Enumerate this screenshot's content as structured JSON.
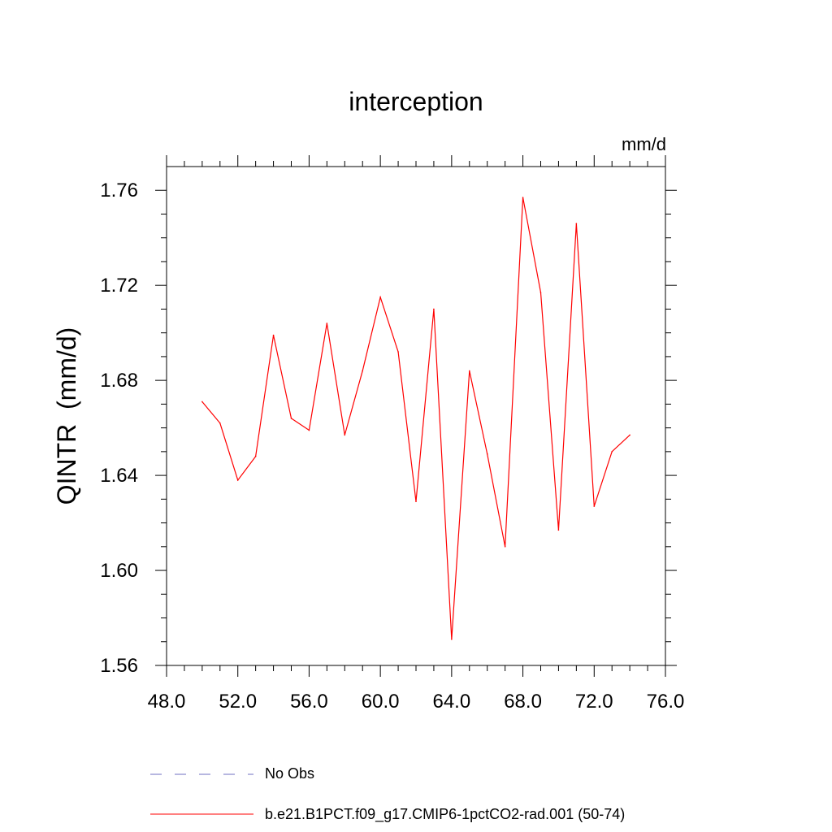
{
  "chart_data": {
    "type": "line",
    "title": "interception",
    "units": "mm/d",
    "ylabel": "QINTR  (mm/d)",
    "xlabel": "",
    "xlim": [
      48,
      76
    ],
    "ylim": [
      1.56,
      1.77
    ],
    "x_ticks": [
      48,
      52,
      56,
      60,
      64,
      68,
      72,
      76
    ],
    "x_tick_labels": [
      "48.0",
      "52.0",
      "56.0",
      "60.0",
      "64.0",
      "68.0",
      "72.0",
      "76.0"
    ],
    "y_ticks": [
      1.56,
      1.6,
      1.64,
      1.68,
      1.72,
      1.76
    ],
    "y_tick_labels": [
      "1.56",
      "1.60",
      "1.64",
      "1.68",
      "1.72",
      "1.76"
    ],
    "grid": false,
    "series": [
      {
        "name": "b.e21.B1PCT.f09_g17.CMIP6-1pctCO2-rad.001 (50-74)",
        "color": "#ff0000",
        "x": [
          50,
          51,
          52,
          53,
          54,
          55,
          56,
          57,
          58,
          59,
          60,
          61,
          62,
          63,
          64,
          65,
          66,
          67,
          68,
          69,
          70,
          71,
          72,
          73,
          74
        ],
        "y": [
          1.671,
          1.662,
          1.638,
          1.648,
          1.699,
          1.664,
          1.659,
          1.704,
          1.657,
          1.684,
          1.715,
          1.692,
          1.629,
          1.71,
          1.571,
          1.684,
          1.649,
          1.61,
          1.757,
          1.717,
          1.617,
          1.746,
          1.627,
          1.65,
          1.657
        ]
      }
    ],
    "legend": {
      "position": "bottom",
      "entries": [
        {
          "label": "No Obs",
          "style": "dashed",
          "color": "#6f6fc0"
        },
        {
          "label": "b.e21.B1PCT.f09_g17.CMIP6-1pctCO2-rad.001 (50-74)",
          "style": "solid",
          "color": "#ff0000"
        }
      ]
    }
  }
}
